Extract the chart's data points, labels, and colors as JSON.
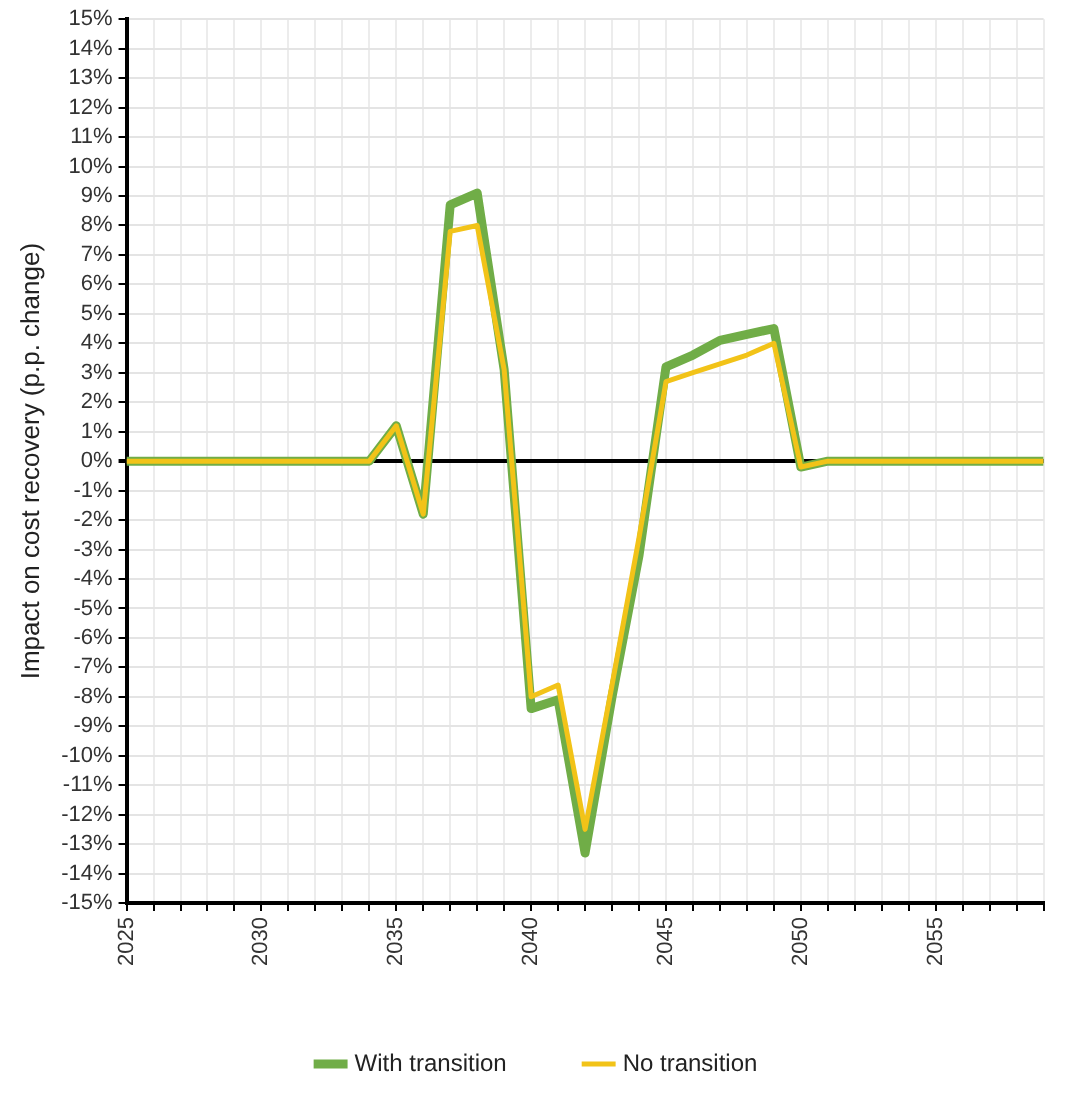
{
  "chart_data": {
    "type": "line",
    "ylabel": "Impact on cost recovery (p.p. change)",
    "x": [
      2025,
      2026,
      2027,
      2028,
      2029,
      2030,
      2031,
      2032,
      2033,
      2034,
      2035,
      2036,
      2037,
      2038,
      2039,
      2040,
      2041,
      2042,
      2043,
      2044,
      2045,
      2046,
      2047,
      2048,
      2049,
      2050,
      2051,
      2052,
      2053,
      2054,
      2055,
      2056,
      2057,
      2058,
      2059
    ],
    "xlim": [
      2025,
      2059
    ],
    "xticks": [
      2025,
      {
        "value": 2026,
        "label": null
      },
      {
        "value": 2027,
        "label": null
      },
      {
        "value": 2028,
        "label": null
      },
      {
        "value": 2029,
        "label": null
      },
      2030,
      {
        "value": 2031,
        "label": null
      },
      {
        "value": 2032,
        "label": null
      },
      {
        "value": 2033,
        "label": null
      },
      {
        "value": 2034,
        "label": null
      },
      2035,
      {
        "value": 2036,
        "label": null
      },
      {
        "value": 2037,
        "label": null
      },
      {
        "value": 2038,
        "label": null
      },
      {
        "value": 2039,
        "label": null
      },
      2040,
      {
        "value": 2041,
        "label": null
      },
      {
        "value": 2042,
        "label": null
      },
      {
        "value": 2043,
        "label": null
      },
      {
        "value": 2044,
        "label": null
      },
      2045,
      {
        "value": 2046,
        "label": null
      },
      {
        "value": 2047,
        "label": null
      },
      {
        "value": 2048,
        "label": null
      },
      {
        "value": 2049,
        "label": null
      },
      2050,
      {
        "value": 2051,
        "label": null
      },
      {
        "value": 2052,
        "label": null
      },
      {
        "value": 2053,
        "label": null
      },
      {
        "value": 2054,
        "label": null
      },
      2055,
      {
        "value": 2056,
        "label": null
      },
      {
        "value": 2057,
        "label": null
      },
      {
        "value": 2058,
        "label": null
      },
      {
        "value": 2059,
        "label": null
      }
    ],
    "ylim": [
      -15,
      15
    ],
    "yticks": [
      {
        "value": -15,
        "label": "-15%"
      },
      {
        "value": -14,
        "label": "-14%"
      },
      {
        "value": -13,
        "label": "-13%"
      },
      {
        "value": -12,
        "label": "-12%"
      },
      {
        "value": -11,
        "label": "-11%"
      },
      {
        "value": -10,
        "label": "-10%"
      },
      {
        "value": -9,
        "label": "-9%"
      },
      {
        "value": -8,
        "label": "-8%"
      },
      {
        "value": -7,
        "label": "-7%"
      },
      {
        "value": -6,
        "label": "-6%"
      },
      {
        "value": -5,
        "label": "-5%"
      },
      {
        "value": -4,
        "label": "-4%"
      },
      {
        "value": -3,
        "label": "-3%"
      },
      {
        "value": -2,
        "label": "-2%"
      },
      {
        "value": -1,
        "label": "-1%"
      },
      {
        "value": 0,
        "label": "0%"
      },
      {
        "value": 1,
        "label": "1%"
      },
      {
        "value": 2,
        "label": "2%"
      },
      {
        "value": 3,
        "label": "3%"
      },
      {
        "value": 4,
        "label": "4%"
      },
      {
        "value": 5,
        "label": "5%"
      },
      {
        "value": 6,
        "label": "6%"
      },
      {
        "value": 7,
        "label": "7%"
      },
      {
        "value": 8,
        "label": "8%"
      },
      {
        "value": 9,
        "label": "9%"
      },
      {
        "value": 10,
        "label": "10%"
      },
      {
        "value": 11,
        "label": "11%"
      },
      {
        "value": 12,
        "label": "12%"
      },
      {
        "value": 13,
        "label": "13%"
      },
      {
        "value": 14,
        "label": "14%"
      },
      {
        "value": 15,
        "label": "15%"
      }
    ],
    "series": [
      {
        "name": "With transition",
        "color": "#70ad47",
        "values": [
          0,
          0,
          0,
          0,
          0,
          0,
          0,
          0,
          0,
          0,
          1.2,
          -1.8,
          8.7,
          9.1,
          3.1,
          -8.4,
          -8.1,
          -13.3,
          -8.0,
          -3.2,
          3.2,
          3.6,
          4.1,
          4.3,
          4.5,
          -0.2,
          0,
          0,
          0,
          0,
          0,
          0,
          0,
          0,
          0
        ]
      },
      {
        "name": "No transition",
        "color": "#f2c318",
        "values": [
          0,
          0,
          0,
          0,
          0,
          0,
          0,
          0,
          0,
          0,
          1.2,
          -1.8,
          7.8,
          8.0,
          3.1,
          -8.0,
          -7.6,
          -12.5,
          -7.6,
          -2.6,
          2.7,
          3.0,
          3.3,
          3.6,
          4.0,
          -0.2,
          0,
          0,
          0,
          0,
          0,
          0,
          0,
          0,
          0
        ]
      }
    ],
    "grid": true,
    "legend": "bottom",
    "marker": "none",
    "line_style": "solid"
  }
}
